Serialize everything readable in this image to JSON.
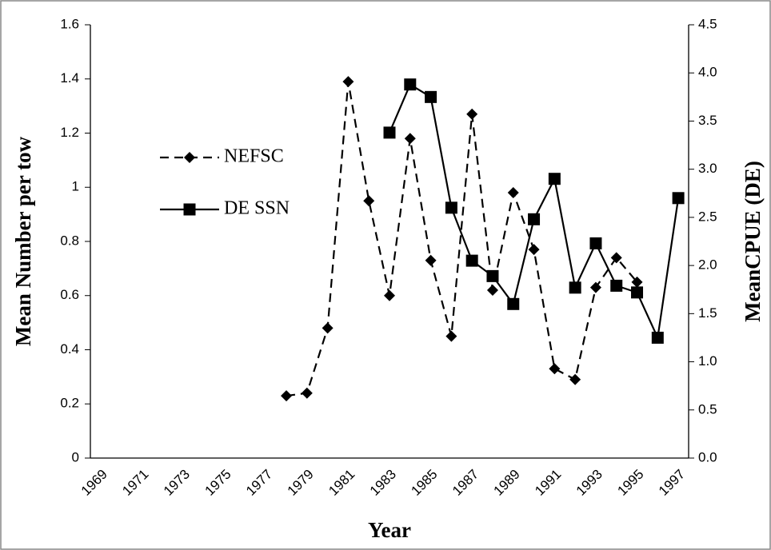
{
  "chart_data": {
    "type": "line",
    "categories": [
      "1969",
      null,
      "1971",
      null,
      "1973",
      null,
      "1975",
      null,
      "1977",
      null,
      "1979",
      null,
      "1981",
      null,
      "1983",
      null,
      "1985",
      null,
      "1987",
      null,
      "1989",
      null,
      "1991",
      null,
      "1993",
      null,
      "1995",
      null,
      "1997"
    ],
    "series": [
      {
        "name": "NEFSC",
        "color": "#000000",
        "line_style": "dashed",
        "marker": "diamond",
        "axis": "y",
        "values": [
          null,
          null,
          null,
          null,
          null,
          null,
          null,
          null,
          null,
          0.23,
          0.24,
          0.48,
          1.39,
          0.95,
          0.6,
          1.18,
          0.73,
          0.45,
          1.27,
          0.62,
          0.98,
          0.77,
          0.33,
          0.29,
          0.63,
          0.74,
          0.65,
          null,
          null
        ]
      },
      {
        "name": "DE SSN",
        "color": "#000000",
        "line_style": "solid",
        "marker": "square",
        "axis": "y2",
        "values": [
          null,
          null,
          null,
          null,
          null,
          null,
          null,
          null,
          null,
          null,
          null,
          null,
          null,
          null,
          3.38,
          3.88,
          3.75,
          2.6,
          2.05,
          1.89,
          1.6,
          2.48,
          2.9,
          1.77,
          2.23,
          1.79,
          1.72,
          1.25,
          2.7
        ]
      }
    ],
    "x_label": "Year",
    "y_label": "Mean Number per tow",
    "y2_label": "MeanCPUE (DE)",
    "ylim": [
      0,
      1.6
    ],
    "yticks": [
      0,
      0.2,
      0.4,
      0.6,
      0.8,
      1,
      1.2,
      1.4,
      1.6
    ],
    "y2lim": [
      0,
      4.5
    ],
    "y2ticks": [
      {
        "value": 0,
        "label": "0.0"
      },
      0.5,
      {
        "value": 1,
        "label": "1.0"
      },
      1.5,
      {
        "value": 2,
        "label": "2.0"
      },
      2.5,
      {
        "value": 3,
        "label": "3.0"
      },
      3.5,
      {
        "value": 4,
        "label": "4.0"
      },
      4.5
    ],
    "grid": false,
    "legend": "left"
  }
}
